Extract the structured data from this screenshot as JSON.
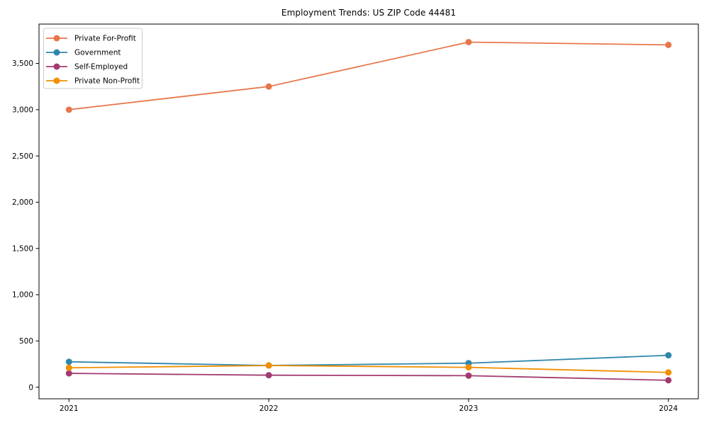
{
  "chart_data": {
    "type": "line",
    "title": "Employment Trends: US ZIP Code 44481",
    "xlabel": "",
    "ylabel": "",
    "x": [
      2021,
      2022,
      2023,
      2024
    ],
    "x_tick_labels": [
      "2021",
      "2022",
      "2023",
      "2024"
    ],
    "series": [
      {
        "name": "Private For-Profit",
        "color": "#E8764B",
        "values": [
          3000,
          3250,
          3730,
          3700
        ]
      },
      {
        "name": "Government",
        "color": "#2E86AB",
        "values": [
          275,
          235,
          260,
          345
        ]
      },
      {
        "name": "Self-Employed",
        "color": "#A23B72",
        "values": [
          150,
          130,
          125,
          75
        ]
      },
      {
        "name": "Private Non-Profit",
        "color": "#F18F01",
        "values": [
          210,
          235,
          215,
          160
        ]
      }
    ],
    "y_ticks": [
      0,
      500,
      1000,
      1500,
      2000,
      2500,
      3000,
      3500
    ],
    "y_tick_labels": [
      "0",
      "500",
      "1,000",
      "1,500",
      "2,000",
      "2,500",
      "3,000",
      "3,500"
    ],
    "xlim": [
      2020.85,
      2024.15
    ],
    "ylim": [
      -125,
      3925
    ],
    "grid": false,
    "legend_position": "upper-left",
    "marker": "circle",
    "axis_color": "#000000",
    "legend_border_color": "#cccccc"
  }
}
